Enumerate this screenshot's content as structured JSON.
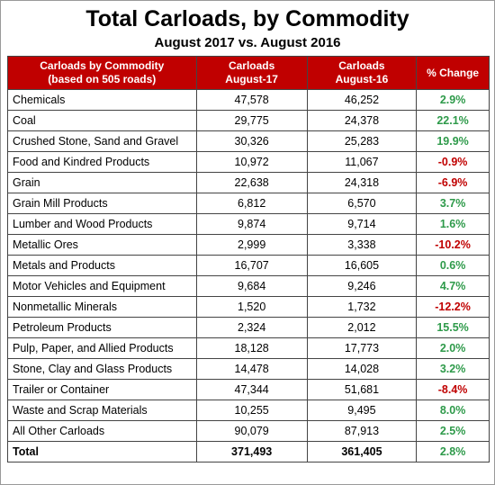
{
  "header": {
    "title": "Total Carloads, by Commodity",
    "subtitle": "August 2017 vs. August 2016"
  },
  "table": {
    "columns": [
      [
        "Carloads by Commodity",
        "(based on 505 roads)"
      ],
      [
        "Carloads",
        "August-17"
      ],
      [
        "Carloads",
        "August-16"
      ],
      [
        "% Change"
      ]
    ],
    "rows": [
      [
        "Chemicals",
        "47,578",
        "46,252",
        "2.9%"
      ],
      [
        "Coal",
        "29,775",
        "24,378",
        "22.1%"
      ],
      [
        "Crushed Stone, Sand and Gravel",
        "30,326",
        "25,283",
        "19.9%"
      ],
      [
        "Food and Kindred Products",
        "10,972",
        "11,067",
        "-0.9%"
      ],
      [
        "Grain",
        "22,638",
        "24,318",
        "-6.9%"
      ],
      [
        "Grain Mill Products",
        "6,812",
        "6,570",
        "3.7%"
      ],
      [
        "Lumber and Wood Products",
        "9,874",
        "9,714",
        "1.6%"
      ],
      [
        "Metallic Ores",
        "2,999",
        "3,338",
        "-10.2%"
      ],
      [
        "Metals and Products",
        "16,707",
        "16,605",
        "0.6%"
      ],
      [
        "Motor Vehicles and Equipment",
        "9,684",
        "9,246",
        "4.7%"
      ],
      [
        "Nonmetallic Minerals",
        "1,520",
        "1,732",
        "-12.2%"
      ],
      [
        "Petroleum Products",
        "2,324",
        "2,012",
        "15.5%"
      ],
      [
        "Pulp, Paper, and Allied Products",
        "18,128",
        "17,773",
        "2.0%"
      ],
      [
        "Stone, Clay and Glass Products",
        "14,478",
        "14,028",
        "3.2%"
      ],
      [
        "Trailer or Container",
        "47,344",
        "51,681",
        "-8.4%"
      ],
      [
        "Waste and Scrap Materials",
        "10,255",
        "9,495",
        "8.0%"
      ],
      [
        "All Other Carloads",
        "90,079",
        "87,913",
        "2.5%"
      ]
    ],
    "total": [
      "Total",
      "371,493",
      "361,405",
      "2.8%"
    ],
    "positive_color": "#2e9a4a",
    "negative_color": "#c00000",
    "header_color": "#c00000"
  }
}
